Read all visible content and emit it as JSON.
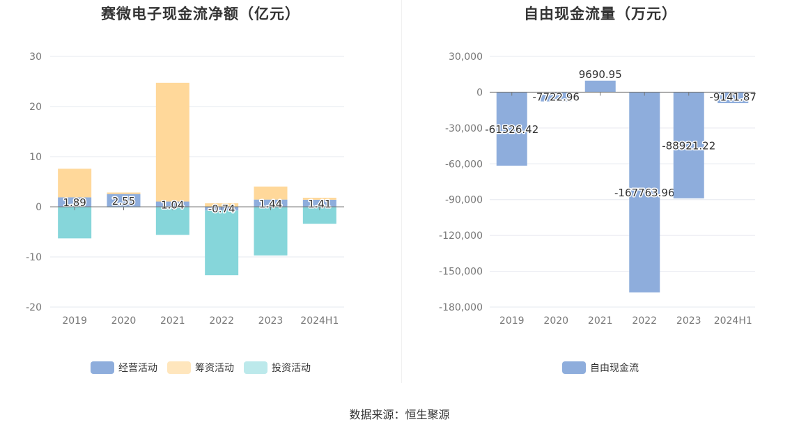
{
  "colors": {
    "operating": "#8eaddc",
    "financing": "#ffd89a",
    "investing": "#86d6da",
    "free_cash_flow": "#8eaddc",
    "grid": "#e6e8ef",
    "axis": "#777777"
  },
  "source_text": "数据来源：恒生聚源",
  "chart_data": [
    {
      "type": "bar",
      "stacked": true,
      "title": "赛微电子现金流净额（亿元）",
      "categories": [
        "2019",
        "2020",
        "2021",
        "2022",
        "2023",
        "2024H1"
      ],
      "ylim": [
        -20,
        30
      ],
      "yticks": [
        "30",
        "20",
        "10",
        "0",
        "-10",
        "-20"
      ],
      "grid": true,
      "legend_position": "bottom",
      "series": [
        {
          "name": "经营活动",
          "values": [
            1.89,
            2.55,
            1.04,
            -0.74,
            1.44,
            1.41
          ]
        },
        {
          "name": "筹资活动",
          "values": [
            5.7,
            0.3,
            23.7,
            0.7,
            2.6,
            0.4
          ]
        },
        {
          "name": "投资活动",
          "values": [
            -6.3,
            -0.1,
            -5.6,
            -12.9,
            -9.7,
            -3.4
          ]
        }
      ],
      "data_labels": [
        "1.89",
        "2.55",
        "1.04",
        "-0.74",
        "1.44",
        "1.41"
      ]
    },
    {
      "type": "bar",
      "title": "自由现金流量（万元）",
      "categories": [
        "2019",
        "2020",
        "2021",
        "2022",
        "2023",
        "2024H1"
      ],
      "ylim": [
        -180000,
        30000
      ],
      "yticks": [
        "30,000",
        "0",
        "-30,000",
        "-60,000",
        "-90,000",
        "-120,000",
        "-150,000",
        "-180,000"
      ],
      "grid": true,
      "legend_position": "bottom",
      "series": [
        {
          "name": "自由现金流",
          "values": [
            -61526.42,
            -7722.96,
            9690.95,
            -167763.96,
            -88921.22,
            -9141.87
          ]
        }
      ],
      "data_labels": [
        "-61526.42",
        "-7722.96",
        "9690.95",
        "-167763.96",
        "-88921.22",
        "-9141.87"
      ]
    }
  ]
}
